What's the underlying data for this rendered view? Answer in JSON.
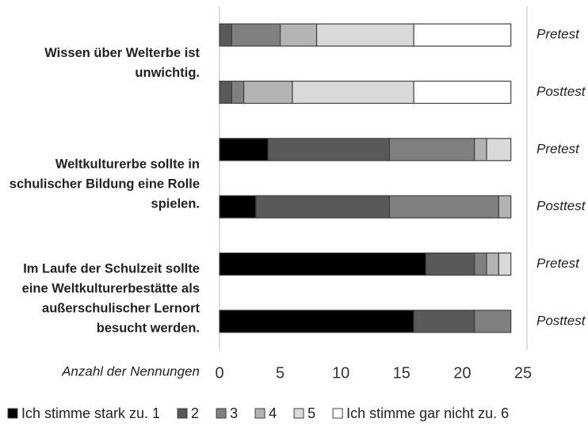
{
  "chart_data": {
    "type": "stacked-bar-horizontal",
    "xlabel": "Anzahl der Nennungen",
    "groups": [
      {
        "label": [
          "Wissen über Welterbe ist",
          "unwichtig."
        ]
      },
      {
        "label": [
          "Weltkulturerbe sollte in",
          "schulischer Bildung eine Rolle",
          "spielen."
        ]
      },
      {
        "label": [
          "Im Laufe der Schulzeit sollte",
          "eine Weltkulturerbestätte als",
          "außerschulischer Lernort",
          "besucht werden."
        ]
      }
    ],
    "categories": [
      "Pretest",
      "Posttest",
      "Pretest",
      "Posttest",
      "Pretest",
      "Posttest"
    ],
    "series": [
      {
        "name": "Ich stimme stark zu. 1",
        "color": "#000000",
        "values": [
          0,
          0,
          4,
          3,
          17,
          16
        ]
      },
      {
        "name": "2",
        "color": "#595959",
        "values": [
          1,
          1,
          10,
          11,
          4,
          5
        ]
      },
      {
        "name": "3",
        "color": "#808080",
        "values": [
          4,
          1,
          7,
          9,
          1,
          3
        ]
      },
      {
        "name": "4",
        "color": "#b3b3b3",
        "values": [
          3,
          4,
          1,
          1,
          1,
          0
        ]
      },
      {
        "name": "5",
        "color": "#d9d9d9",
        "values": [
          8,
          10,
          2,
          0,
          1,
          0
        ]
      },
      {
        "name": "Ich stimme gar nicht zu. 6",
        "color": "#ffffff",
        "values": [
          8,
          8,
          0,
          0,
          0,
          0
        ]
      }
    ],
    "xlim": [
      0,
      25
    ],
    "xticks": [
      0,
      5,
      10,
      15,
      20,
      25
    ]
  }
}
